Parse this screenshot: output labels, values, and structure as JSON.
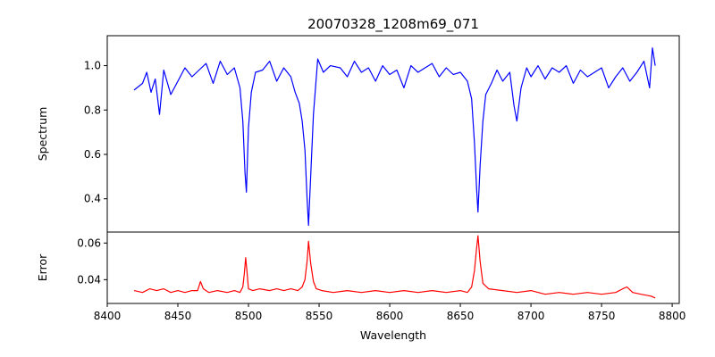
{
  "chart_data": [
    {
      "type": "line",
      "title": "20070328_1208m69_071",
      "xlabel": "",
      "ylabel": "Spectrum",
      "xlim": [
        8400,
        8805
      ],
      "ylim": [
        0.25,
        1.135
      ],
      "yticks": [
        0.4,
        0.6,
        0.8,
        1.0
      ],
      "yticklabels": [
        "0.4",
        "0.6",
        "0.8",
        "1.0"
      ],
      "grid": false,
      "series": [
        {
          "color": "#0000ff",
          "x": [
            8419,
            8425,
            8428,
            8431,
            8434,
            8437,
            8440,
            8445,
            8450,
            8455,
            8460,
            8465,
            8470,
            8475,
            8480,
            8485,
            8490,
            8494,
            8496,
            8497.5,
            8498.5,
            8500,
            8502,
            8505,
            8510,
            8515,
            8520,
            8525,
            8530,
            8533,
            8536,
            8538,
            8540,
            8541.5,
            8542.5,
            8544,
            8546,
            8549,
            8553,
            8558,
            8565,
            8570,
            8575,
            8580,
            8585,
            8590,
            8595,
            8600,
            8605,
            8610,
            8615,
            8620,
            8625,
            8630,
            8635,
            8640,
            8645,
            8650,
            8655,
            8658,
            8660,
            8661.5,
            8662.5,
            8664,
            8666,
            8668,
            8672,
            8676,
            8680,
            8685,
            8688,
            8690,
            8693,
            8697,
            8700,
            8705,
            8710,
            8715,
            8720,
            8725,
            8730,
            8735,
            8740,
            8745,
            8750,
            8755,
            8760,
            8765,
            8770,
            8775,
            8780,
            8784,
            8786,
            8788
          ],
          "y": [
            0.89,
            0.92,
            0.97,
            0.88,
            0.94,
            0.78,
            0.98,
            0.87,
            0.93,
            0.99,
            0.95,
            0.98,
            1.01,
            0.92,
            1.02,
            0.96,
            0.99,
            0.9,
            0.75,
            0.52,
            0.43,
            0.72,
            0.88,
            0.97,
            0.98,
            1.02,
            0.93,
            0.99,
            0.95,
            0.88,
            0.83,
            0.75,
            0.62,
            0.4,
            0.28,
            0.5,
            0.78,
            1.03,
            0.97,
            1.0,
            0.99,
            0.95,
            1.02,
            0.97,
            0.99,
            0.93,
            1.0,
            0.96,
            0.98,
            0.9,
            1.0,
            0.97,
            0.99,
            1.01,
            0.95,
            0.99,
            0.96,
            0.97,
            0.93,
            0.85,
            0.65,
            0.45,
            0.34,
            0.55,
            0.75,
            0.87,
            0.92,
            0.98,
            0.93,
            0.97,
            0.82,
            0.75,
            0.9,
            0.99,
            0.95,
            1.0,
            0.94,
            0.99,
            0.97,
            1.0,
            0.92,
            0.98,
            0.95,
            0.97,
            0.99,
            0.9,
            0.95,
            0.99,
            0.93,
            0.97,
            1.02,
            0.9,
            1.08,
            1.0
          ]
        }
      ]
    },
    {
      "type": "line",
      "title": "",
      "xlabel": "Wavelength",
      "ylabel": "Error",
      "xlim": [
        8400,
        8805
      ],
      "ylim": [
        0.027,
        0.066
      ],
      "xticks": [
        8400,
        8450,
        8500,
        8550,
        8600,
        8650,
        8700,
        8750,
        8800
      ],
      "xticklabels": [
        "8400",
        "8450",
        "8500",
        "8550",
        "8600",
        "8650",
        "8700",
        "8750",
        "8800"
      ],
      "yticks": [
        0.04,
        0.06
      ],
      "yticklabels": [
        "0.04",
        "0.06"
      ],
      "grid": false,
      "series": [
        {
          "color": "#ff0000",
          "x": [
            8419,
            8425,
            8430,
            8435,
            8440,
            8445,
            8450,
            8455,
            8460,
            8464,
            8466,
            8468,
            8472,
            8478,
            8485,
            8490,
            8494,
            8496,
            8497,
            8498,
            8499,
            8500,
            8503,
            8508,
            8515,
            8520,
            8525,
            8530,
            8535,
            8538,
            8540,
            8541.5,
            8542.5,
            8544,
            8546,
            8548,
            8552,
            8560,
            8570,
            8580,
            8590,
            8600,
            8610,
            8620,
            8630,
            8640,
            8650,
            8655,
            8658,
            8660,
            8661.5,
            8662.5,
            8664,
            8666,
            8670,
            8680,
            8690,
            8700,
            8710,
            8720,
            8730,
            8740,
            8750,
            8760,
            8765,
            8768,
            8772,
            8778,
            8785,
            8788
          ],
          "y": [
            0.034,
            0.033,
            0.035,
            0.034,
            0.035,
            0.033,
            0.034,
            0.033,
            0.034,
            0.034,
            0.039,
            0.035,
            0.033,
            0.034,
            0.033,
            0.034,
            0.033,
            0.036,
            0.043,
            0.052,
            0.044,
            0.035,
            0.034,
            0.035,
            0.034,
            0.035,
            0.034,
            0.035,
            0.034,
            0.036,
            0.04,
            0.05,
            0.061,
            0.049,
            0.039,
            0.035,
            0.034,
            0.033,
            0.034,
            0.033,
            0.034,
            0.033,
            0.034,
            0.033,
            0.034,
            0.033,
            0.034,
            0.033,
            0.036,
            0.045,
            0.057,
            0.064,
            0.05,
            0.038,
            0.035,
            0.034,
            0.033,
            0.034,
            0.032,
            0.033,
            0.032,
            0.033,
            0.032,
            0.033,
            0.035,
            0.036,
            0.033,
            0.032,
            0.031,
            0.03
          ]
        }
      ]
    }
  ]
}
